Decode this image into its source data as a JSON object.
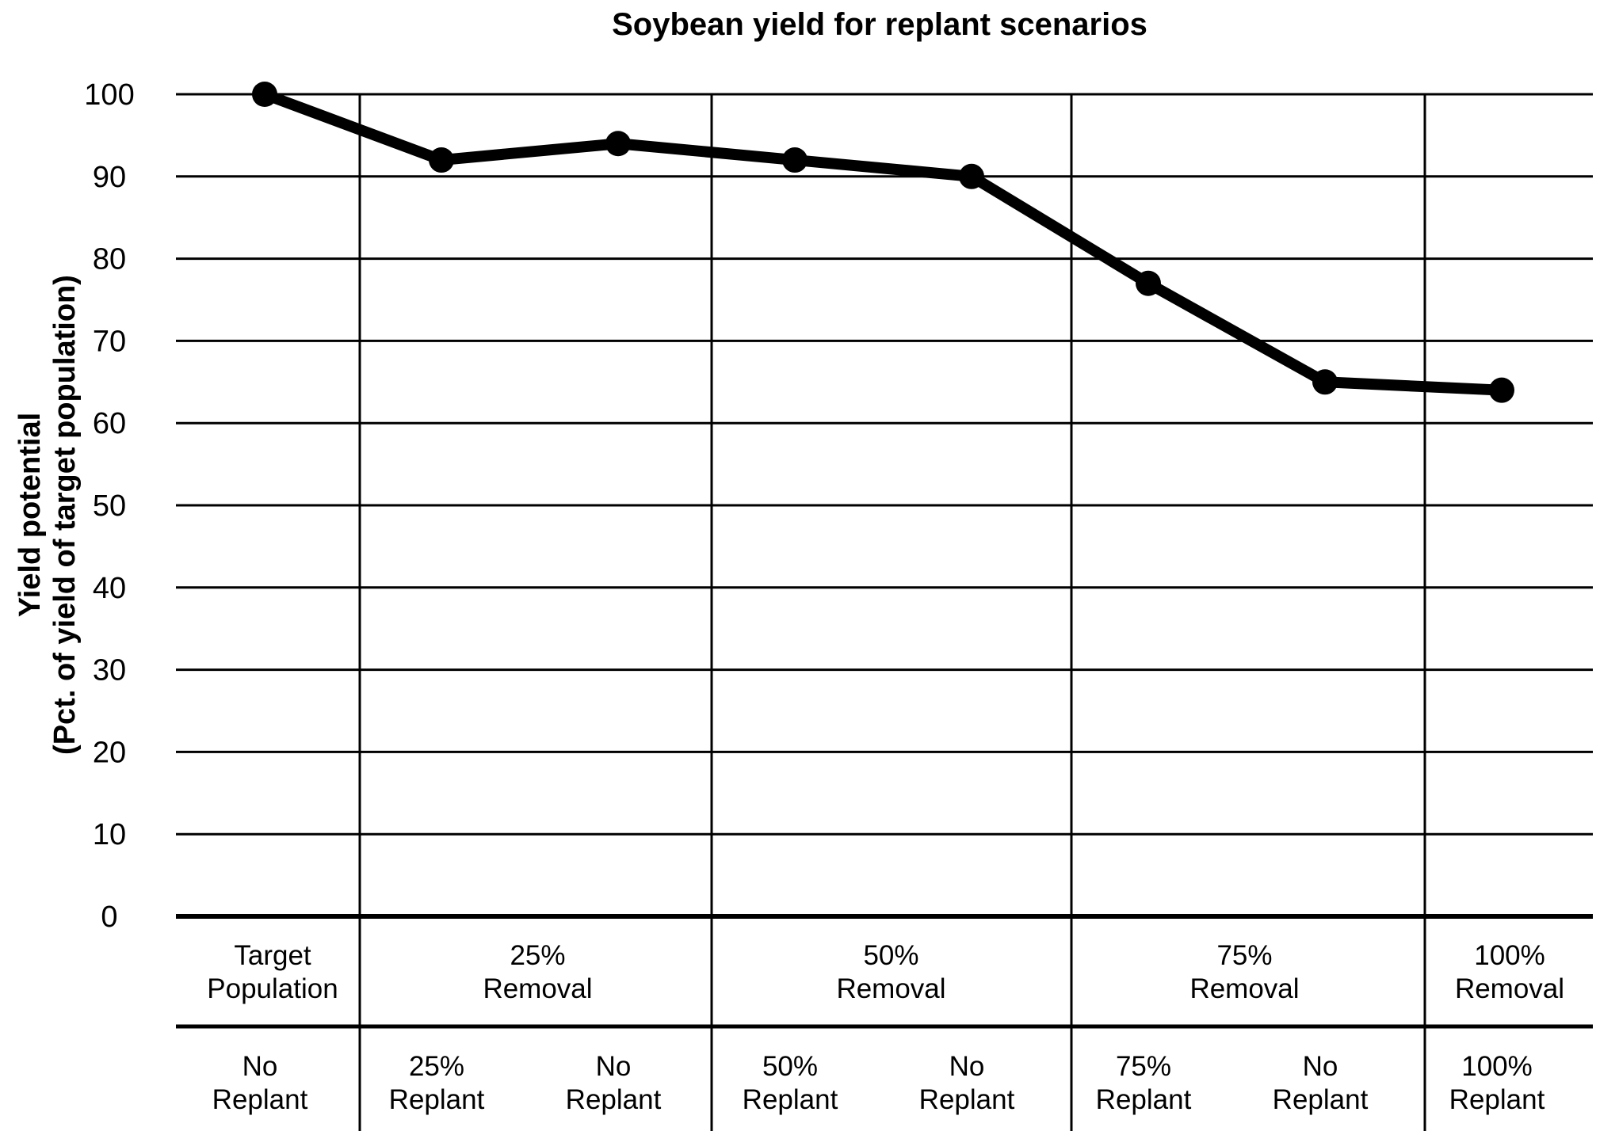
{
  "chart_data": {
    "type": "line",
    "title": "Soybean yield for replant scenarios",
    "ylabel": [
      "Yield potential",
      "(Pct. of yield of target population)"
    ],
    "xlabel": "",
    "ylim": [
      0,
      100
    ],
    "yticks": [
      "0",
      "10",
      "20",
      "30",
      "40",
      "50",
      "60",
      "70",
      "80",
      "90",
      "100"
    ],
    "grid": "horizontal",
    "groups": [
      {
        "label": [
          "Target",
          "Population"
        ],
        "span": 1
      },
      {
        "label": [
          "25%",
          "Removal"
        ],
        "span": 2
      },
      {
        "label": [
          "50%",
          "Removal"
        ],
        "span": 2
      },
      {
        "label": [
          "75%",
          "Removal"
        ],
        "span": 2
      },
      {
        "label": [
          "100%",
          "Removal"
        ],
        "span": 1
      }
    ],
    "categories": [
      [
        "No",
        "Replant"
      ],
      [
        "25%",
        "Replant"
      ],
      [
        "No",
        "Replant"
      ],
      [
        "50%",
        "Replant"
      ],
      [
        "No",
        "Replant"
      ],
      [
        "75%",
        "Replant"
      ],
      [
        "No",
        "Replant"
      ],
      [
        "100%",
        "Replant"
      ]
    ],
    "series": [
      {
        "values": [
          100,
          92,
          94,
          92,
          90,
          77,
          65,
          64
        ]
      }
    ]
  },
  "colors": {
    "line": "#000000",
    "grid": "#000000",
    "background": "#ffffff"
  }
}
